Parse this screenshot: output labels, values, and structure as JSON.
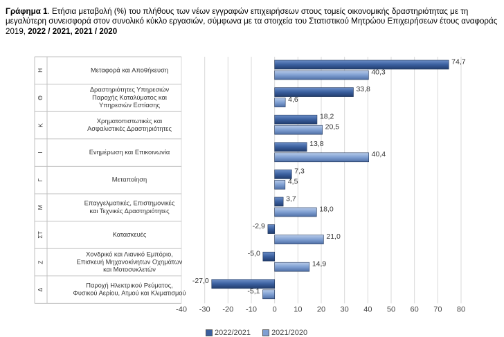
{
  "caption": {
    "label": "Γράφημα 1",
    "text_before": ". Ετήσια μεταβολή (%) του πλήθους των νέων εγγραφών επιχειρήσεων στους τομείς οικονομικής δραστηριότητας με τη μεγαλύτερη συνεισφορά στον συνολικό κύκλο εργασιών, σύμφωνα με τα στοιχεία του Στατιστικού Μητρώου Επιχειρήσεων έτους αναφοράς 2019, ",
    "years_bold": "2022 / 2021, 2021 / 2020"
  },
  "chart_data": {
    "type": "bar",
    "orientation": "horizontal",
    "categories": [
      {
        "code": "Η",
        "lines": [
          "Μεταφορά και Αποθήκευση"
        ]
      },
      {
        "code": "Θ",
        "lines": [
          "Δραστηριότητες Υπηρεσιών",
          "Παροχής Καταλύματος και",
          "Υπηρεσιών Εστίασης"
        ]
      },
      {
        "code": "Κ",
        "lines": [
          "Χρηματοπιστωτικές και",
          "Ασφαλιστικές Δραστηριότητες"
        ]
      },
      {
        "code": "Ι",
        "lines": [
          "Ενημέρωση και Επικοινωνία"
        ]
      },
      {
        "code": "Γ",
        "lines": [
          "Μεταποίηση"
        ]
      },
      {
        "code": "Μ",
        "lines": [
          "Επαγγελματικές, Επιστημονικές",
          "και Τεχνικές Δραστηριότητες"
        ]
      },
      {
        "code": "ΣΤ",
        "lines": [
          "Κατασκευές"
        ]
      },
      {
        "code": "Ζ",
        "lines": [
          "Χονδρικό και Λιανικό Εμπόριο,",
          "Επισκευή Μηχανοκίνητων Οχημάτων",
          "και Μοτοσυκλετών"
        ]
      },
      {
        "code": "Δ",
        "lines": [
          "Παροχή Ηλεκτρικού Ρεύματος,",
          "Φυσικού Αερίου, Ατμού και Κλιματισμού"
        ]
      }
    ],
    "series": [
      {
        "name": "2022/2021",
        "color": "#3a5f9e",
        "values": [
          74.7,
          33.8,
          18.2,
          13.8,
          7.3,
          3.7,
          -2.9,
          -5.0,
          -27.0
        ],
        "labels": [
          "74,7",
          "33,8",
          "18,2",
          "13,8",
          "7,3",
          "3,7",
          "-2,9",
          "-5,0",
          "-27,0"
        ]
      },
      {
        "name": "2021/2020",
        "color": "#7f9fd2",
        "values": [
          40.3,
          4.6,
          20.5,
          40.4,
          4.5,
          18.0,
          21.0,
          14.9,
          -5.1
        ],
        "labels": [
          "40,3",
          "4,6",
          "20,5",
          "40,4",
          "4,5",
          "18,0",
          "21,0",
          "14,9",
          "-5,1"
        ]
      }
    ],
    "xlim": [
      -40,
      80
    ],
    "xticks": [
      -40,
      -30,
      -20,
      -10,
      0,
      10,
      20,
      30,
      40,
      50,
      60,
      70,
      80
    ],
    "legend_position": "bottom",
    "grid": true
  }
}
